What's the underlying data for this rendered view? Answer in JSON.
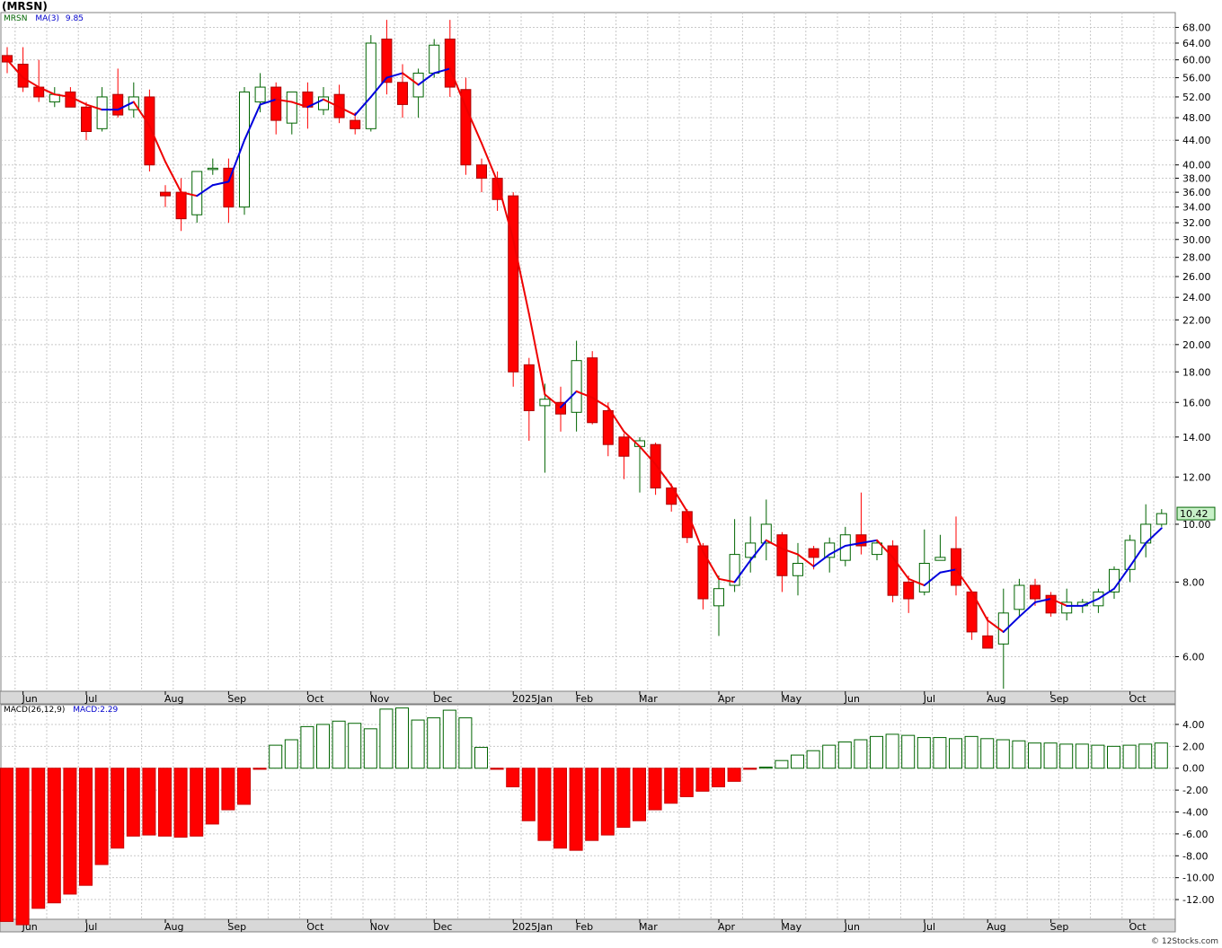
{
  "header": {
    "symbol": "(MRSN)"
  },
  "price_legend": {
    "symbol": "MRSN",
    "ma_label": "MA(3)",
    "ma_value": "9.85"
  },
  "macd_legend": {
    "label": "MACD(26,12,9)",
    "value_label": "MACD:2.29"
  },
  "last_price_label": "10.42",
  "credit": "© 12Stocks.com",
  "colors": {
    "up": "#006400",
    "down": "#ff0000",
    "ma_up": "#0000dd",
    "ma_down": "#ee0000",
    "grid": "#c8c8c8",
    "axis_bar": "#d8d8d8",
    "last_price_bg": "#c8f0c8"
  },
  "chart_data": [
    {
      "type": "candlestick",
      "scale": "log",
      "ylim": [
        5.25,
        72
      ],
      "yticks": [
        6,
        8,
        10,
        12,
        14,
        16,
        18,
        20,
        22,
        24,
        26,
        28,
        30,
        32,
        34,
        36,
        38,
        40,
        44,
        48,
        52,
        56,
        60,
        64,
        68
      ],
      "month_labels": [
        {
          "label": "Jun",
          "i": 1
        },
        {
          "label": "Jul",
          "i": 5
        },
        {
          "label": "Aug",
          "i": 10
        },
        {
          "label": "Sep",
          "i": 14
        },
        {
          "label": "Oct",
          "i": 19
        },
        {
          "label": "Nov",
          "i": 23
        },
        {
          "label": "Dec",
          "i": 27
        },
        {
          "label": "2025Jan",
          "i": 32
        },
        {
          "label": "Feb",
          "i": 36
        },
        {
          "label": "Mar",
          "i": 40
        },
        {
          "label": "Apr",
          "i": 45
        },
        {
          "label": "May",
          "i": 49
        },
        {
          "label": "Jun",
          "i": 53
        },
        {
          "label": "Jul",
          "i": 58
        },
        {
          "label": "Aug",
          "i": 62
        },
        {
          "label": "Sep",
          "i": 66
        },
        {
          "label": "Oct",
          "i": 71
        }
      ],
      "candles": [
        [
          61,
          63,
          57,
          59.5
        ],
        [
          59,
          63,
          53,
          54
        ],
        [
          54,
          60,
          51,
          52
        ],
        [
          51,
          54,
          50,
          52.5
        ],
        [
          53,
          54,
          50,
          50
        ],
        [
          50,
          51,
          44,
          45.5
        ],
        [
          46,
          54,
          45.5,
          52
        ],
        [
          52.5,
          58,
          48,
          48.5
        ],
        [
          49.5,
          55,
          48,
          52
        ],
        [
          52,
          53.5,
          39,
          40
        ],
        [
          36,
          37,
          34,
          35.5
        ],
        [
          36,
          38,
          31,
          32.5
        ],
        [
          33,
          39,
          32,
          39
        ],
        [
          39.5,
          41,
          38.5,
          39.5
        ],
        [
          39.5,
          41,
          32,
          34
        ],
        [
          34,
          54,
          33,
          53
        ],
        [
          51,
          57,
          49,
          54
        ],
        [
          54,
          55,
          45,
          47.5
        ],
        [
          47,
          53,
          45,
          53
        ],
        [
          53,
          55,
          46,
          50
        ],
        [
          49.5,
          54,
          48.5,
          52
        ],
        [
          52.5,
          54.5,
          47,
          48
        ],
        [
          47.5,
          49,
          45,
          46
        ],
        [
          46,
          66,
          45.5,
          64
        ],
        [
          65,
          70,
          52.5,
          55
        ],
        [
          55,
          59,
          48,
          50.5
        ],
        [
          52,
          58,
          48,
          57
        ],
        [
          57,
          65,
          56,
          63.5
        ],
        [
          65,
          70,
          52,
          54
        ],
        [
          53.5,
          56,
          38.5,
          40
        ],
        [
          40,
          41,
          36,
          38
        ],
        [
          38,
          39,
          33.5,
          35
        ],
        [
          35.5,
          36,
          17,
          18
        ],
        [
          18.5,
          19,
          13.8,
          15.5
        ],
        [
          15.8,
          17.2,
          12.2,
          16.2
        ],
        [
          16,
          17,
          14.3,
          15.3
        ],
        [
          15.4,
          20.3,
          14.3,
          18.8
        ],
        [
          19,
          19.5,
          14.7,
          14.8
        ],
        [
          15.5,
          16,
          13,
          13.6
        ],
        [
          14,
          14.2,
          11.9,
          13
        ],
        [
          13.5,
          14,
          11.3,
          13.8
        ],
        [
          13.6,
          13.7,
          11.2,
          11.5
        ],
        [
          11.5,
          11.7,
          10.5,
          10.8
        ],
        [
          10.5,
          10.6,
          9.3,
          9.5
        ],
        [
          9.2,
          9.3,
          7.2,
          7.5
        ],
        [
          7.3,
          8.2,
          6.5,
          7.8
        ],
        [
          7.9,
          10.2,
          7.7,
          8.9
        ],
        [
          8.8,
          10.3,
          8.3,
          9.3
        ],
        [
          9.3,
          11,
          8.7,
          10
        ],
        [
          9.6,
          9.7,
          7.7,
          8.2
        ],
        [
          8.2,
          9.3,
          7.6,
          8.6
        ],
        [
          9.1,
          9.2,
          8.4,
          8.8
        ],
        [
          8.8,
          9.5,
          8.3,
          9.3
        ],
        [
          8.7,
          9.9,
          8.5,
          9.6
        ],
        [
          9.6,
          11.3,
          8.9,
          9.2
        ],
        [
          8.9,
          9.4,
          8.7,
          9.3
        ],
        [
          9.2,
          9.4,
          7.4,
          7.6
        ],
        [
          8,
          8.2,
          7.1,
          7.5
        ],
        [
          7.7,
          9.8,
          7.6,
          8.6
        ],
        [
          8.7,
          9.6,
          8.7,
          8.8
        ],
        [
          9.1,
          10.3,
          7.6,
          7.9
        ],
        [
          7.7,
          7.7,
          6.4,
          6.6
        ],
        [
          6.5,
          7,
          6.2,
          6.2
        ],
        [
          6.3,
          7.8,
          5.3,
          7.1
        ],
        [
          7.2,
          8.1,
          7,
          7.9
        ],
        [
          7.9,
          8.1,
          7.3,
          7.5
        ],
        [
          7.6,
          7.7,
          7,
          7.1
        ],
        [
          7.1,
          7.8,
          6.9,
          7.4
        ],
        [
          7.3,
          7.5,
          7.1,
          7.4
        ],
        [
          7.3,
          7.8,
          7.1,
          7.7
        ],
        [
          7.7,
          8.5,
          7.5,
          8.4
        ],
        [
          8.4,
          9.6,
          8,
          9.4
        ],
        [
          9.3,
          10.8,
          8.8,
          10.0
        ],
        [
          10.0,
          10.6,
          9.9,
          10.42
        ]
      ],
      "ma3": [
        60,
        56,
        54,
        52.5,
        52,
        50.5,
        49.5,
        49.5,
        51,
        46.5,
        40.5,
        36,
        35.5,
        37,
        37.5,
        44,
        50.5,
        51.5,
        51,
        50,
        51.5,
        50,
        48.5,
        52,
        56,
        57,
        54.5,
        57,
        58,
        50,
        43.5,
        37.5,
        30,
        22.5,
        16.5,
        15.7,
        16.7,
        16.3,
        15.7,
        14.3,
        13.5,
        12.6,
        11.6,
        10.5,
        9,
        8.1,
        8,
        8.7,
        9.4,
        9.1,
        8.9,
        8.5,
        8.9,
        9.2,
        9.3,
        9.4,
        8.8,
        8.1,
        7.9,
        8.3,
        8.4,
        7.7,
        6.9,
        6.6,
        7.0,
        7.4,
        7.5,
        7.3,
        7.3,
        7.5,
        7.8,
        8.5,
        9.3,
        9.85
      ],
      "macd": [
        -14,
        -14.3,
        -12.8,
        -12.3,
        -11.5,
        -10.7,
        -8.8,
        -7.3,
        -6.2,
        -6.1,
        -6.2,
        -6.3,
        -6.2,
        -5.1,
        -3.8,
        -3.3,
        -0.1,
        2.1,
        2.6,
        3.8,
        4.0,
        4.3,
        4.1,
        3.6,
        5.4,
        5.5,
        4.4,
        4.6,
        5.3,
        4.6,
        1.9,
        -0.1,
        -1.7,
        -4.8,
        -6.6,
        -7.3,
        -7.5,
        -6.6,
        -6.1,
        -5.4,
        -4.8,
        -3.8,
        -3.2,
        -2.6,
        -2.1,
        -1.7,
        -1.2,
        -0.1,
        0.1,
        0.7,
        1.2,
        1.6,
        2.1,
        2.4,
        2.6,
        2.9,
        3.1,
        3.0,
        2.8,
        2.8,
        2.7,
        2.9,
        2.7,
        2.6,
        2.5,
        2.3,
        2.3,
        2.2,
        2.2,
        2.1,
        2.0,
        2.1,
        2.2,
        2.3
      ]
    },
    {
      "type": "bar",
      "name_ref": "macd",
      "ylim": [
        -13.8,
        5.8
      ],
      "yticks": [
        4,
        2,
        0,
        -2,
        -4,
        -6,
        -8,
        -10,
        -12
      ],
      "ytick_labels": [
        "4.00",
        "2.00",
        "0.00",
        "-2.00",
        "-4.00",
        "-6.00",
        "-8.00",
        "-10.00",
        "-12.00"
      ]
    }
  ]
}
